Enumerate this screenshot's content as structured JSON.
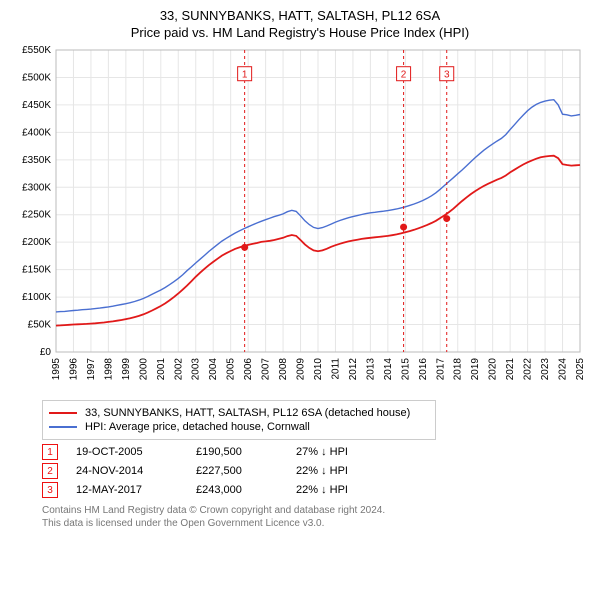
{
  "title_line1": "33, SUNNYBANKS, HATT, SALTASH, PL12 6SA",
  "title_line2": "Price paid vs. HM Land Registry's House Price Index (HPI)",
  "chart": {
    "type": "line",
    "background_color": "#ffffff",
    "grid_color": "#e6e6e6",
    "axis_color": "#000000",
    "x_years": [
      1995,
      1996,
      1997,
      1998,
      1999,
      2000,
      2001,
      2002,
      2003,
      2004,
      2005,
      2006,
      2007,
      2008,
      2009,
      2010,
      2011,
      2012,
      2013,
      2014,
      2015,
      2016,
      2017,
      2018,
      2019,
      2020,
      2021,
      2022,
      2023,
      2024,
      2025
    ],
    "ylim": [
      0,
      550000
    ],
    "ytick_step": 50000,
    "ytick_prefix": "£",
    "ytick_suffix": "K",
    "y_ticks": [
      "£0",
      "£50K",
      "£100K",
      "£150K",
      "£200K",
      "£250K",
      "£300K",
      "£350K",
      "£400K",
      "£450K",
      "£500K",
      "£550K"
    ],
    "tick_fontsize": 10,
    "series": [
      {
        "name": "hpi",
        "color": "#4a6fd1",
        "width": 1.4,
        "step": 0.25,
        "values": [
          73000,
          73500,
          74000,
          74800,
          75500,
          76200,
          77000,
          77500,
          78200,
          79000,
          80000,
          81000,
          82200,
          83500,
          85000,
          86500,
          88000,
          89800,
          92000,
          94500,
          97500,
          101000,
          105000,
          109000,
          113000,
          117500,
          122500,
          128000,
          134000,
          140500,
          148000,
          155000,
          162000,
          169000,
          176000,
          183000,
          189500,
          196000,
          202000,
          207000,
          212000,
          216500,
          220500,
          224500,
          228000,
          231500,
          235000,
          238000,
          241000,
          243800,
          246500,
          249000,
          251500,
          255500,
          258000,
          256000,
          248000,
          239000,
          232000,
          227000,
          225000,
          226500,
          229500,
          233000,
          236500,
          239500,
          242000,
          244500,
          246500,
          248500,
          250500,
          252000,
          253500,
          254500,
          255500,
          256500,
          257500,
          259000,
          260500,
          262500,
          264500,
          267000,
          269500,
          272500,
          276000,
          280000,
          284500,
          290000,
          296500,
          303500,
          310500,
          317500,
          324500,
          331500,
          339000,
          346500,
          354000,
          361000,
          367500,
          373500,
          379000,
          384000,
          389000,
          396000,
          405000,
          414000,
          423000,
          431500,
          439500,
          446000,
          451000,
          454500,
          457000,
          458500,
          459500,
          450000,
          433000,
          432000,
          430000,
          431000,
          432500
        ]
      },
      {
        "name": "property",
        "color": "#e11919",
        "width": 1.8,
        "step": 0.25,
        "values": [
          48000,
          48500,
          49000,
          49500,
          50000,
          50400,
          50900,
          51200,
          51700,
          52200,
          53000,
          53800,
          54800,
          55800,
          57000,
          58300,
          60000,
          61500,
          63500,
          65800,
          68500,
          71700,
          75500,
          79600,
          83800,
          88500,
          94000,
          100000,
          106500,
          113500,
          121000,
          129000,
          137000,
          144500,
          151500,
          158000,
          164000,
          170000,
          175500,
          180000,
          184000,
          187800,
          190500,
          193000,
          195000,
          196800,
          198500,
          200500,
          201500,
          202500,
          204000,
          206000,
          208000,
          211000,
          213000,
          211500,
          204000,
          196000,
          189500,
          185000,
          183500,
          185000,
          188000,
          191500,
          194500,
          197000,
          199500,
          201500,
          203000,
          204500,
          206000,
          207000,
          208000,
          208800,
          209700,
          210600,
          211500,
          212800,
          214200,
          216000,
          218000,
          220200,
          222500,
          225200,
          228200,
          231500,
          235000,
          239000,
          244000,
          249200,
          254800,
          261000,
          268000,
          275000,
          281500,
          287500,
          293000,
          298000,
          302500,
          306500,
          310200,
          313800,
          317000,
          321500,
          327000,
          332000,
          337000,
          341500,
          345500,
          349000,
          352000,
          354500,
          356000,
          357000,
          357500,
          353000,
          342000,
          340500,
          339500,
          340000,
          340500
        ]
      }
    ],
    "sale_markers": [
      {
        "label": "1",
        "x": 2005.8,
        "y": 190500,
        "box_y": 505000
      },
      {
        "label": "2",
        "x": 2014.9,
        "y": 227500,
        "box_y": 505000
      },
      {
        "label": "3",
        "x": 2017.37,
        "y": 243000,
        "box_y": 505000
      }
    ]
  },
  "legend": {
    "rows": [
      {
        "color": "#e11919",
        "label": "33, SUNNYBANKS, HATT, SALTASH, PL12 6SA (detached house)"
      },
      {
        "color": "#4a6fd1",
        "label": "HPI: Average price, detached house, Cornwall"
      }
    ]
  },
  "marker_table": [
    {
      "n": "1",
      "date": "19-OCT-2005",
      "price": "£190,500",
      "delta": "27% ↓ HPI"
    },
    {
      "n": "2",
      "date": "24-NOV-2014",
      "price": "£227,500",
      "delta": "22% ↓ HPI"
    },
    {
      "n": "3",
      "date": "12-MAY-2017",
      "price": "£243,000",
      "delta": "22% ↓ HPI"
    }
  ],
  "footer_line1": "Contains HM Land Registry data © Crown copyright and database right 2024.",
  "footer_line2": "This data is licensed under the Open Government Licence v3.0.",
  "colors": {
    "marker_box": "#e11919",
    "dashed_line": "#e11919"
  }
}
